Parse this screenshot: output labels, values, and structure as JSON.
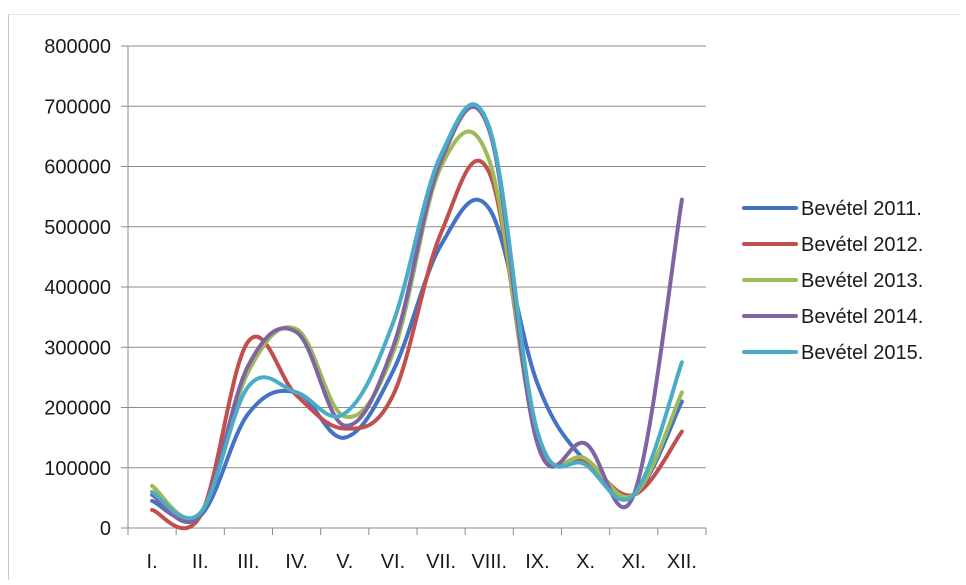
{
  "chart_data": {
    "type": "line",
    "categories": [
      "I.",
      "II.",
      "III.",
      "IV.",
      "V.",
      "VI.",
      "VII.",
      "VIII.",
      "IX.",
      "X.",
      "XI.",
      "XII."
    ],
    "ylim": [
      0,
      800000
    ],
    "yticks": [
      0,
      100000,
      200000,
      300000,
      400000,
      500000,
      600000,
      700000,
      800000
    ],
    "ytick_labels": [
      "0",
      "100000",
      "200000",
      "300000",
      "400000",
      "500000",
      "600000",
      "700000",
      "800000"
    ],
    "grid": true,
    "legend_position": "right",
    "series": [
      {
        "name": "Bevétel 2011.",
        "color": "#4472c4",
        "values": [
          45000,
          20000,
          190000,
          225000,
          150000,
          260000,
          470000,
          530000,
          240000,
          110000,
          55000,
          210000
        ]
      },
      {
        "name": "Bevétel 2012.",
        "color": "#c0504d",
        "values": [
          30000,
          20000,
          310000,
          220000,
          165000,
          220000,
          490000,
          590000,
          150000,
          110000,
          55000,
          160000
        ]
      },
      {
        "name": "Bevétel 2013.",
        "color": "#9bbb59",
        "values": [
          70000,
          25000,
          260000,
          330000,
          185000,
          290000,
          600000,
          610000,
          150000,
          115000,
          55000,
          225000
        ]
      },
      {
        "name": "Bevétel 2014.",
        "color": "#8064a2",
        "values": [
          55000,
          22000,
          270000,
          325000,
          170000,
          300000,
          610000,
          660000,
          140000,
          140000,
          55000,
          545000
        ]
      },
      {
        "name": "Bevétel 2015.",
        "color": "#4bacc6",
        "values": [
          60000,
          25000,
          235000,
          225000,
          190000,
          340000,
          620000,
          665000,
          160000,
          105000,
          55000,
          275000
        ]
      }
    ]
  }
}
